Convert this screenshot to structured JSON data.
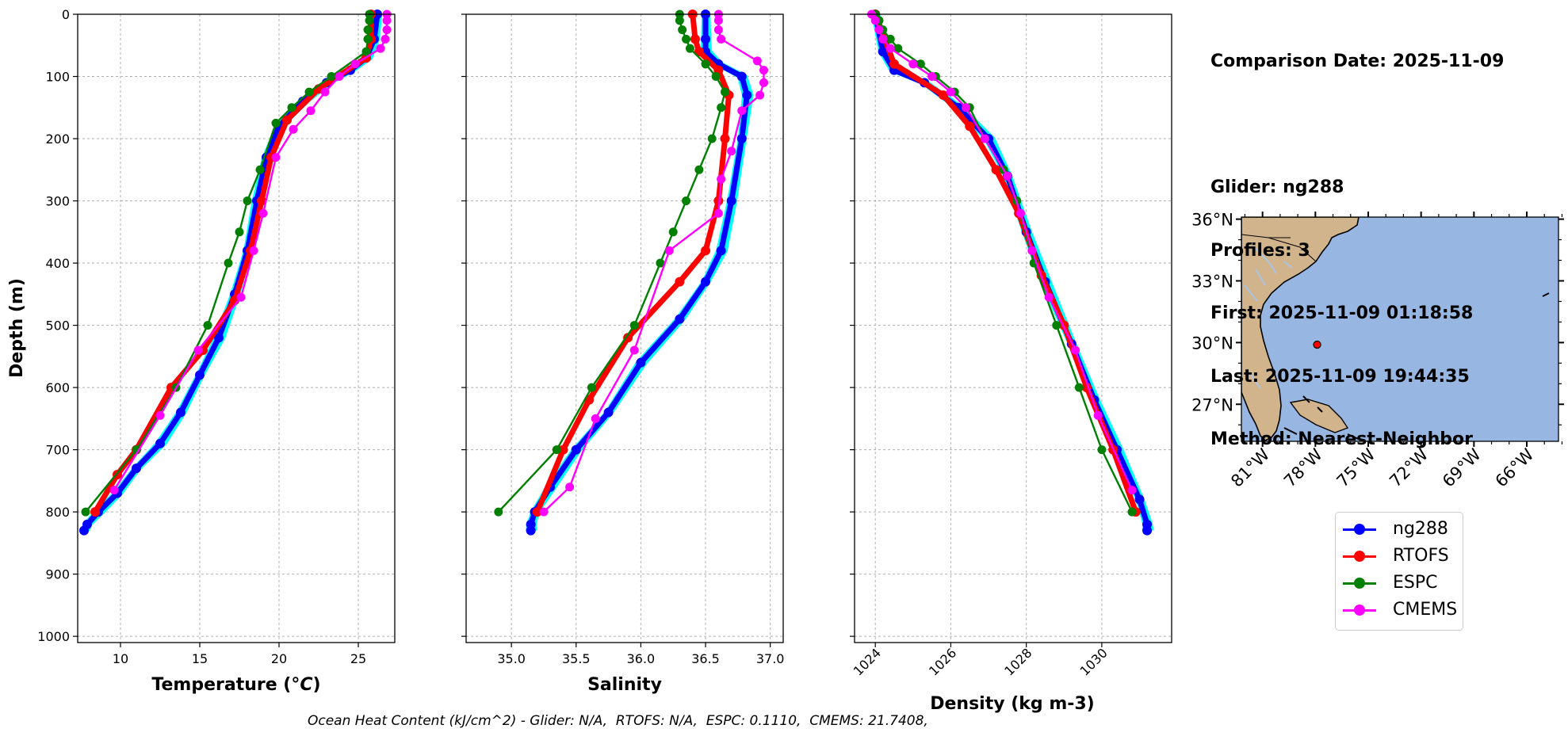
{
  "info": {
    "comparison_date": "Comparison Date: 2025-11-09",
    "glider": "Glider: ng288",
    "profiles": "Profiles: 3",
    "first": "First: 2025-11-09 01:18:58",
    "last": "Last: 2025-11-09 19:44:35",
    "method": "Method: Nearest-Neighbor"
  },
  "footer": "Ocean Heat Content (kJ/cm^2) - Glider: N/A,  RTOFS: N/A,  ESPC: 0.1110,  CMEMS: 21.7408,",
  "colors": {
    "ng288": "#0000ff",
    "ng288_individual": "#00ffff",
    "RTOFS": "#ff0000",
    "ESPC": "#008000",
    "CMEMS": "#ff00ff",
    "land": "#d2b48c",
    "ocean": "#97b6e1"
  },
  "legend": [
    {
      "name": "ng288",
      "color": "#0000ff"
    },
    {
      "name": "RTOFS",
      "color": "#ff0000"
    },
    {
      "name": "ESPC",
      "color": "#008000"
    },
    {
      "name": "CMEMS",
      "color": "#ff00ff"
    }
  ],
  "chart_data": [
    {
      "type": "line",
      "xlabel": "Temperature (°C)",
      "ylabel": "Depth (m)",
      "xlim": [
        7.3,
        27.3
      ],
      "ylim": [
        1010,
        0
      ],
      "xticks": [
        10,
        15,
        20,
        25
      ],
      "yticks": [
        0,
        100,
        200,
        300,
        400,
        500,
        600,
        700,
        800,
        900,
        1000
      ],
      "grid": true,
      "series": [
        {
          "name": "ng288",
          "x": [
            26.2,
            26.0,
            25.5,
            24.5,
            23.0,
            21.5,
            20.0,
            19.2,
            18.6,
            18.0,
            17.2,
            16.2,
            15.0,
            13.8,
            12.5,
            11.0,
            9.8,
            8.6,
            7.9,
            7.7
          ],
          "y": [
            0,
            40,
            70,
            90,
            110,
            140,
            180,
            230,
            300,
            380,
            450,
            520,
            580,
            640,
            690,
            730,
            770,
            800,
            820,
            830
          ]
        },
        {
          "name": "RTOFS",
          "x": [
            25.8,
            25.8,
            25.5,
            22.5,
            20.5,
            19.5,
            18.9,
            18.2,
            17.2,
            15.2,
            13.2,
            11.0,
            9.8,
            8.4
          ],
          "y": [
            0,
            40,
            70,
            120,
            170,
            230,
            300,
            380,
            460,
            540,
            600,
            700,
            740,
            800
          ]
        },
        {
          "name": "ESPC",
          "x": [
            25.7,
            25.7,
            25.6,
            25.6,
            25.5,
            23.3,
            21.9,
            20.8,
            19.8,
            18.8,
            18.0,
            17.5,
            16.8,
            15.5,
            13.5,
            11.0,
            7.8
          ],
          "y": [
            0,
            10,
            25,
            40,
            60,
            100,
            125,
            150,
            175,
            250,
            300,
            350,
            400,
            500,
            600,
            700,
            800
          ]
        },
        {
          "name": "CMEMS",
          "x": [
            26.8,
            26.8,
            26.8,
            26.7,
            26.4,
            24.8,
            23.8,
            22.9,
            22.0,
            20.9,
            19.8,
            19.0,
            18.4,
            17.6,
            14.9,
            12.5,
            9.6
          ],
          "y": [
            0,
            10,
            25,
            40,
            55,
            80,
            100,
            125,
            155,
            185,
            230,
            320,
            380,
            455,
            540,
            645,
            765
          ]
        }
      ]
    },
    {
      "type": "line",
      "xlabel": "Salinity",
      "ylabel": "",
      "xlim": [
        34.65,
        37.1
      ],
      "ylim": [
        1010,
        0
      ],
      "xticks": [
        35.0,
        35.5,
        36.0,
        36.5,
        37.0
      ],
      "grid": true,
      "series": [
        {
          "name": "ng288",
          "x": [
            36.5,
            36.5,
            36.5,
            36.6,
            36.78,
            36.82,
            36.78,
            36.7,
            36.62,
            36.5,
            36.3,
            36.0,
            35.75,
            35.5,
            35.3,
            35.18,
            35.15,
            35.15
          ],
          "y": [
            0,
            40,
            60,
            80,
            100,
            130,
            200,
            300,
            380,
            430,
            490,
            560,
            640,
            700,
            760,
            800,
            820,
            830
          ]
        },
        {
          "name": "RTOFS",
          "x": [
            36.4,
            36.42,
            36.45,
            36.6,
            36.68,
            36.65,
            36.6,
            36.5,
            36.3,
            35.9,
            35.6,
            35.4,
            35.2
          ],
          "y": [
            0,
            40,
            60,
            90,
            130,
            200,
            300,
            380,
            430,
            520,
            620,
            700,
            800
          ]
        },
        {
          "name": "ESPC",
          "x": [
            36.3,
            36.3,
            36.32,
            36.35,
            36.38,
            36.5,
            36.58,
            36.65,
            36.62,
            36.55,
            36.45,
            36.35,
            36.25,
            36.15,
            35.95,
            35.62,
            35.35,
            34.9
          ],
          "y": [
            0,
            10,
            25,
            40,
            55,
            80,
            100,
            125,
            150,
            200,
            250,
            300,
            350,
            400,
            500,
            600,
            700,
            800
          ]
        },
        {
          "name": "CMEMS",
          "x": [
            36.6,
            36.6,
            36.6,
            36.62,
            36.9,
            36.95,
            36.95,
            36.92,
            36.78,
            36.7,
            36.62,
            36.6,
            36.22,
            35.95,
            35.65,
            35.45,
            35.25
          ],
          "y": [
            0,
            10,
            25,
            40,
            75,
            90,
            110,
            130,
            155,
            220,
            265,
            320,
            380,
            540,
            650,
            760,
            800
          ]
        }
      ]
    },
    {
      "type": "line",
      "xlabel": "Density (kg m-3)",
      "ylabel": "",
      "xlim": [
        1023.45,
        1031.85
      ],
      "ylim": [
        1010,
        0
      ],
      "xticks": [
        1024,
        1026,
        1028,
        1030
      ],
      "grid": true,
      "series": [
        {
          "name": "ng288",
          "x": [
            1024.0,
            1024.2,
            1024.5,
            1025.3,
            1026.2,
            1027.0,
            1027.5,
            1028.0,
            1028.5,
            1029.2,
            1029.8,
            1030.4,
            1031.0,
            1031.2,
            1031.2
          ],
          "y": [
            0,
            60,
            90,
            110,
            150,
            200,
            260,
            350,
            430,
            530,
            620,
            700,
            780,
            820,
            830
          ]
        },
        {
          "name": "RTOFS",
          "x": [
            1024.0,
            1024.5,
            1025.8,
            1026.5,
            1027.2,
            1027.8,
            1028.4,
            1029.0,
            1029.6,
            1030.3,
            1030.9
          ],
          "y": [
            0,
            80,
            130,
            180,
            250,
            320,
            420,
            500,
            600,
            700,
            800
          ]
        },
        {
          "name": "ESPC",
          "x": [
            1024.0,
            1024.1,
            1024.2,
            1024.4,
            1024.6,
            1025.2,
            1025.6,
            1026.1,
            1026.5,
            1026.9,
            1027.4,
            1027.75,
            1028.2,
            1028.8,
            1029.4,
            1030.0,
            1030.8
          ],
          "y": [
            0,
            10,
            25,
            40,
            55,
            80,
            100,
            125,
            150,
            200,
            250,
            300,
            400,
            500,
            600,
            700,
            800
          ]
        },
        {
          "name": "CMEMS",
          "x": [
            1023.9,
            1024.0,
            1024.1,
            1024.2,
            1024.4,
            1025.0,
            1025.5,
            1026.0,
            1026.4,
            1026.9,
            1027.5,
            1027.85,
            1028.15,
            1028.6,
            1029.3,
            1029.9,
            1030.8
          ],
          "y": [
            0,
            10,
            25,
            40,
            55,
            80,
            100,
            125,
            150,
            200,
            260,
            320,
            380,
            455,
            540,
            645,
            765
          ]
        }
      ]
    }
  ],
  "map": {
    "lat_ticks": [
      "36°N",
      "33°N",
      "30°N",
      "27°N"
    ],
    "lon_ticks": [
      "81°W",
      "78°W",
      "75°W",
      "72°W",
      "69°W",
      "66°W"
    ],
    "glider_location": {
      "lon": -77.9,
      "lat": 29.9
    }
  }
}
